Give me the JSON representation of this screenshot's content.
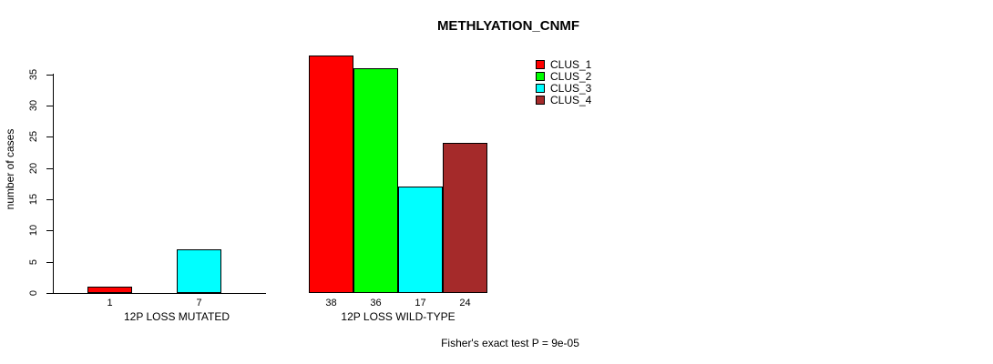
{
  "chart_data": {
    "type": "bar",
    "title": "METHLYATION_CNMF",
    "ylabel": "number of cases",
    "xlabel": "",
    "yticks": [
      0,
      5,
      10,
      15,
      20,
      25,
      30,
      35
    ],
    "ylim": [
      0,
      38
    ],
    "grid": false,
    "categories": [
      "12P LOSS MUTATED",
      "12P LOSS WILD-TYPE"
    ],
    "series": [
      {
        "name": "CLUS_1",
        "color": "#ff0000",
        "values": [
          1,
          38
        ]
      },
      {
        "name": "CLUS_2",
        "color": "#00ff00",
        "values": [
          0,
          36
        ]
      },
      {
        "name": "CLUS_3",
        "color": "#00ffff",
        "values": [
          7,
          17
        ]
      },
      {
        "name": "CLUS_4",
        "color": "#a52a2a",
        "values": [
          0,
          24
        ]
      }
    ],
    "bar_value_labels": {
      "shown": true,
      "rule": "value shown under each visible bar"
    },
    "legend": {
      "position": "top-right",
      "entries": [
        "CLUS_1",
        "CLUS_2",
        "CLUS_3",
        "CLUS_4"
      ]
    },
    "annotation": "Fisher's exact test P = 9e-05",
    "colors": {
      "axis": "#000000",
      "text": "#000000",
      "background": "#ffffff"
    }
  }
}
